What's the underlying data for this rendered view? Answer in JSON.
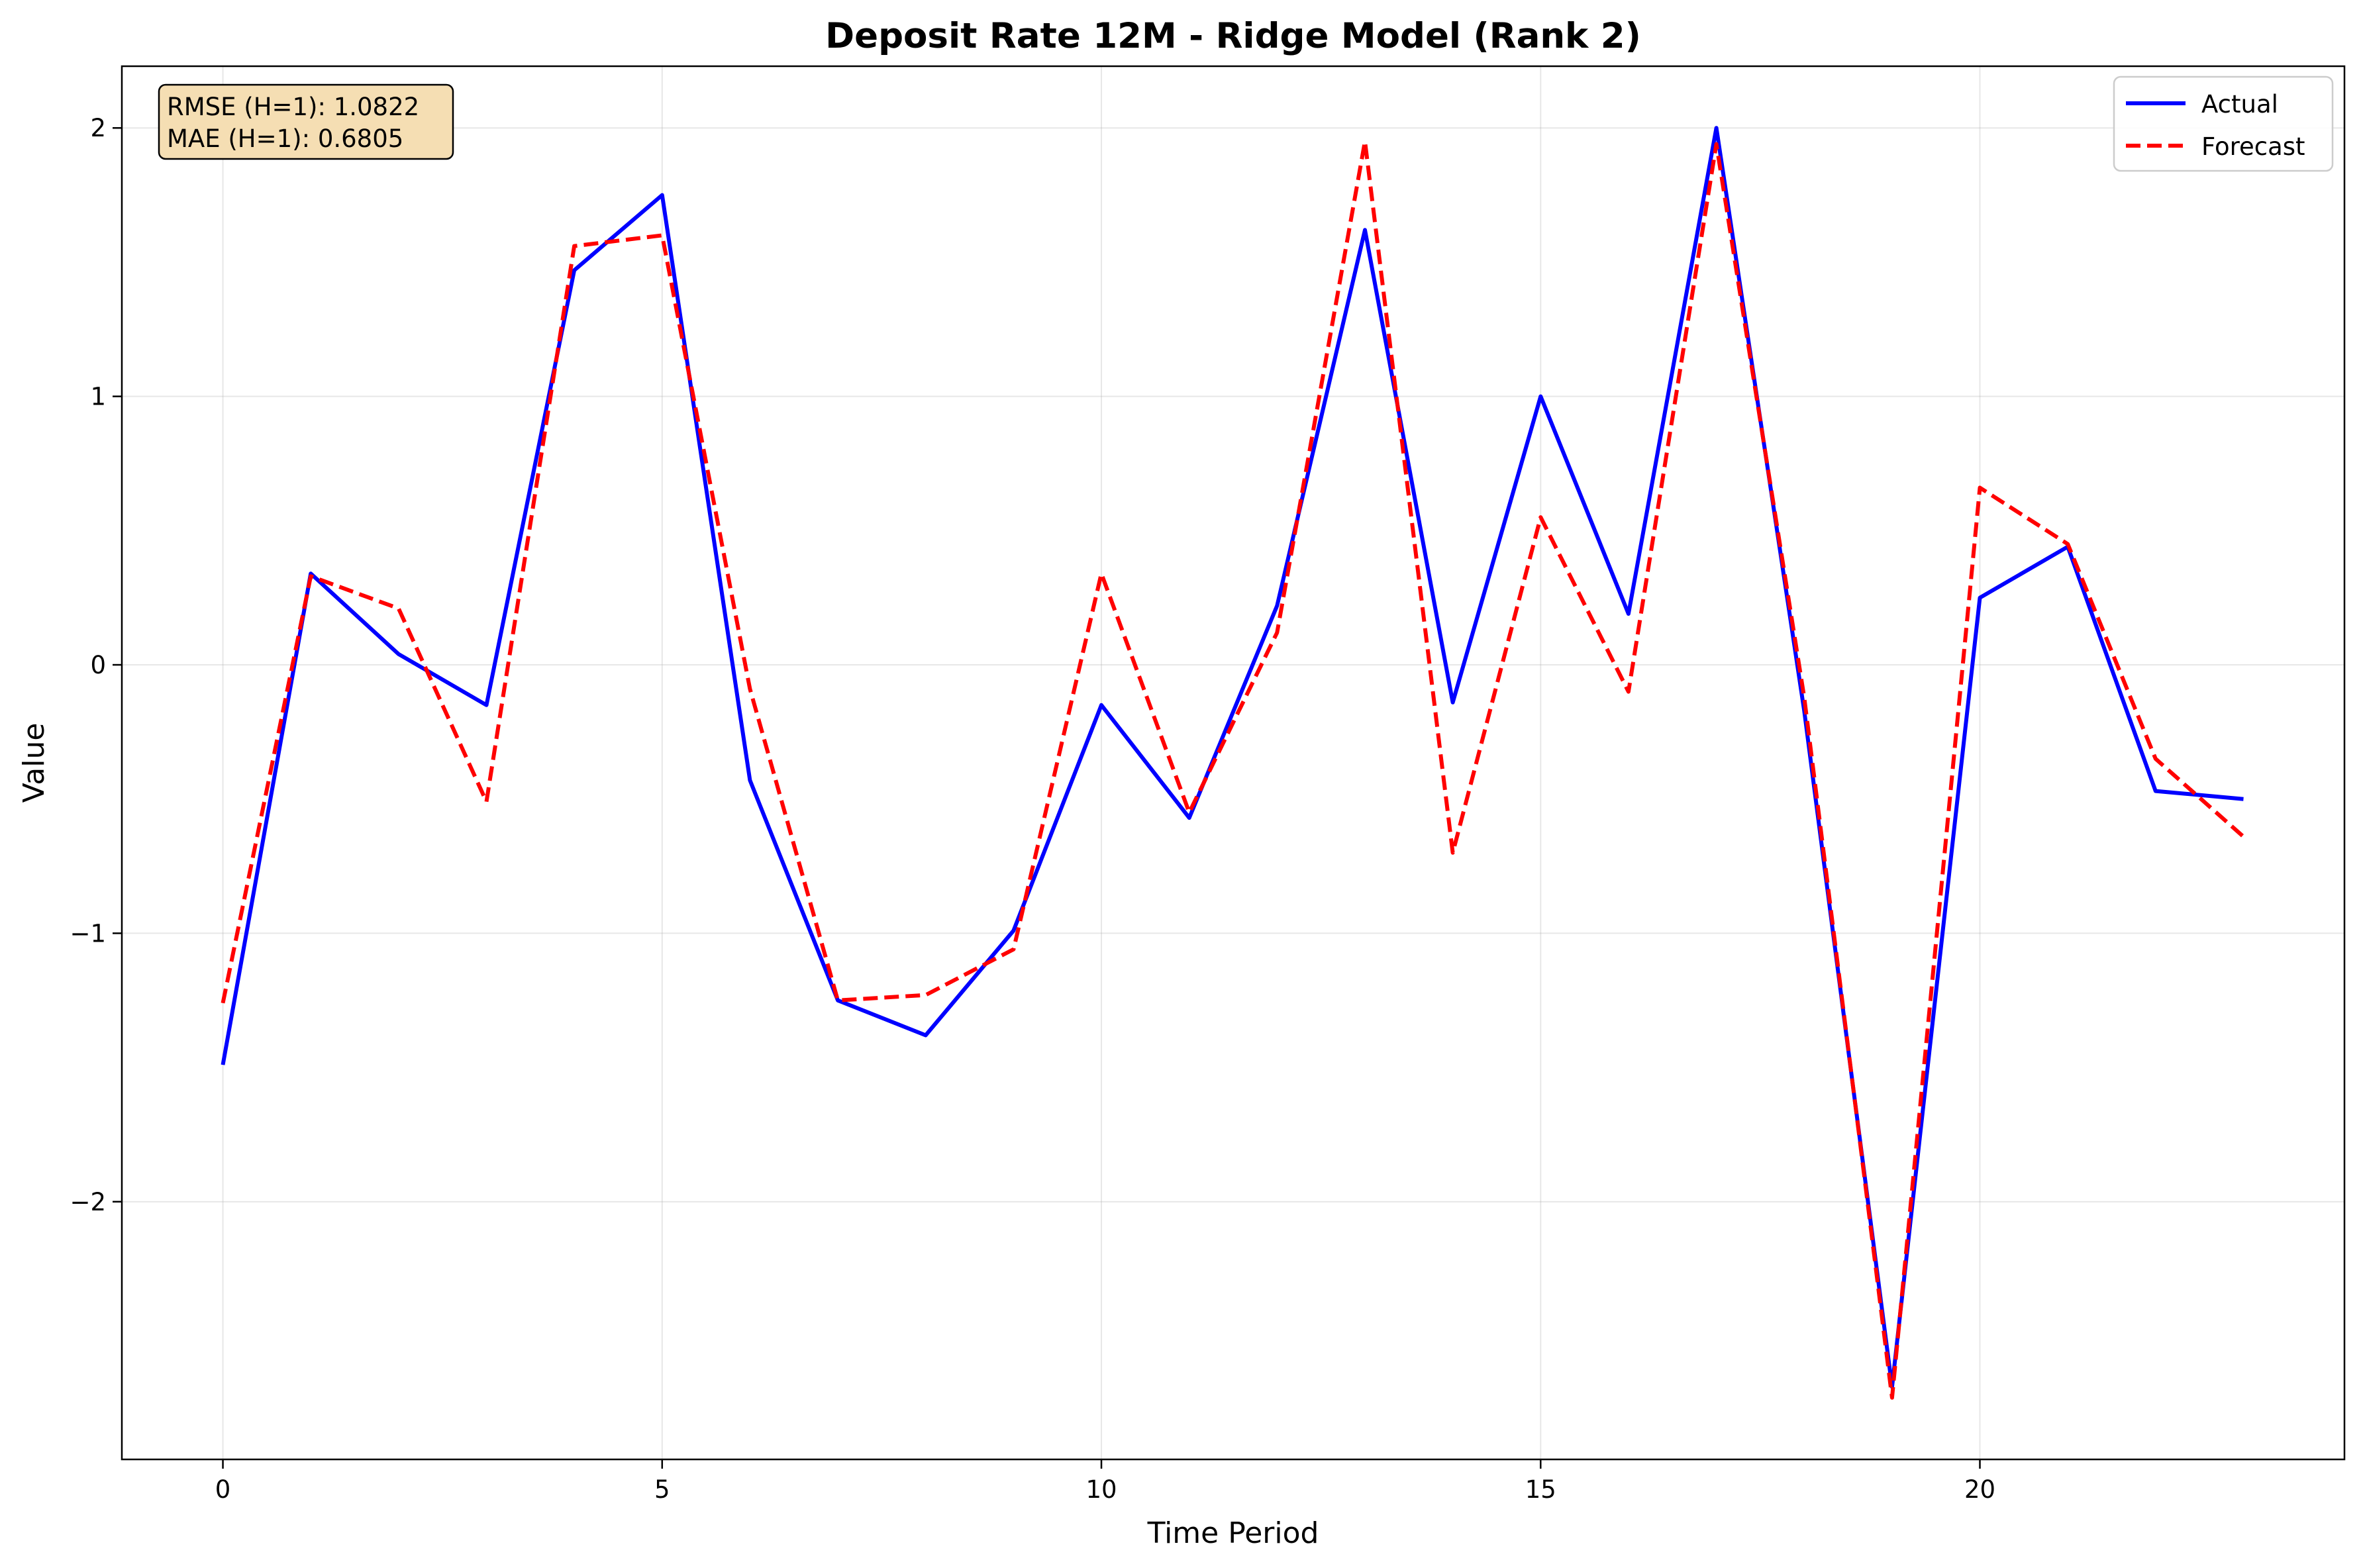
{
  "chart_data": {
    "type": "line",
    "title": "Deposit Rate 12M - Ridge Model (Rank 2)",
    "xlabel": "Time Period",
    "ylabel": "Value",
    "xlim": [
      -1.15,
      24.15
    ],
    "ylim": [
      -2.96,
      2.23
    ],
    "xticks": [
      0,
      5,
      10,
      15,
      20
    ],
    "xtick_labels": [
      "0",
      "5",
      "10",
      "15",
      "20"
    ],
    "yticks": [
      -2,
      -1,
      0,
      1,
      2
    ],
    "ytick_labels": [
      "−2",
      "−1",
      "0",
      "1",
      "2"
    ],
    "grid": true,
    "legend_position": "top-right",
    "x": [
      0,
      1,
      2,
      3,
      4,
      5,
      6,
      7,
      8,
      9,
      10,
      11,
      12,
      13,
      14,
      15,
      16,
      17,
      18,
      19,
      20,
      21,
      22,
      23
    ],
    "series": [
      {
        "name": "Actual",
        "color": "#0000ff",
        "style": "solid",
        "values": [
          -1.49,
          0.34,
          0.04,
          -0.15,
          1.47,
          1.75,
          -0.43,
          -1.25,
          -1.38,
          -0.99,
          -0.15,
          -0.57,
          0.22,
          1.62,
          -0.14,
          1.0,
          0.19,
          2.0,
          -0.17,
          -2.69,
          0.25,
          0.44,
          -0.47,
          -0.5
        ]
      },
      {
        "name": "Forecast",
        "color": "#ff0000",
        "style": "dashed",
        "values": [
          -1.26,
          0.33,
          0.21,
          -0.51,
          1.56,
          1.6,
          -0.09,
          -1.25,
          -1.23,
          -1.06,
          0.34,
          -0.55,
          0.12,
          1.95,
          -0.7,
          0.55,
          -0.1,
          1.94,
          -0.12,
          -2.73,
          0.66,
          0.45,
          -0.35,
          -0.64
        ]
      }
    ],
    "annotation": {
      "lines": [
        "RMSE (H=1): 1.0822",
        "MAE (H=1): 0.6805"
      ],
      "background": "#f5deb3"
    }
  }
}
